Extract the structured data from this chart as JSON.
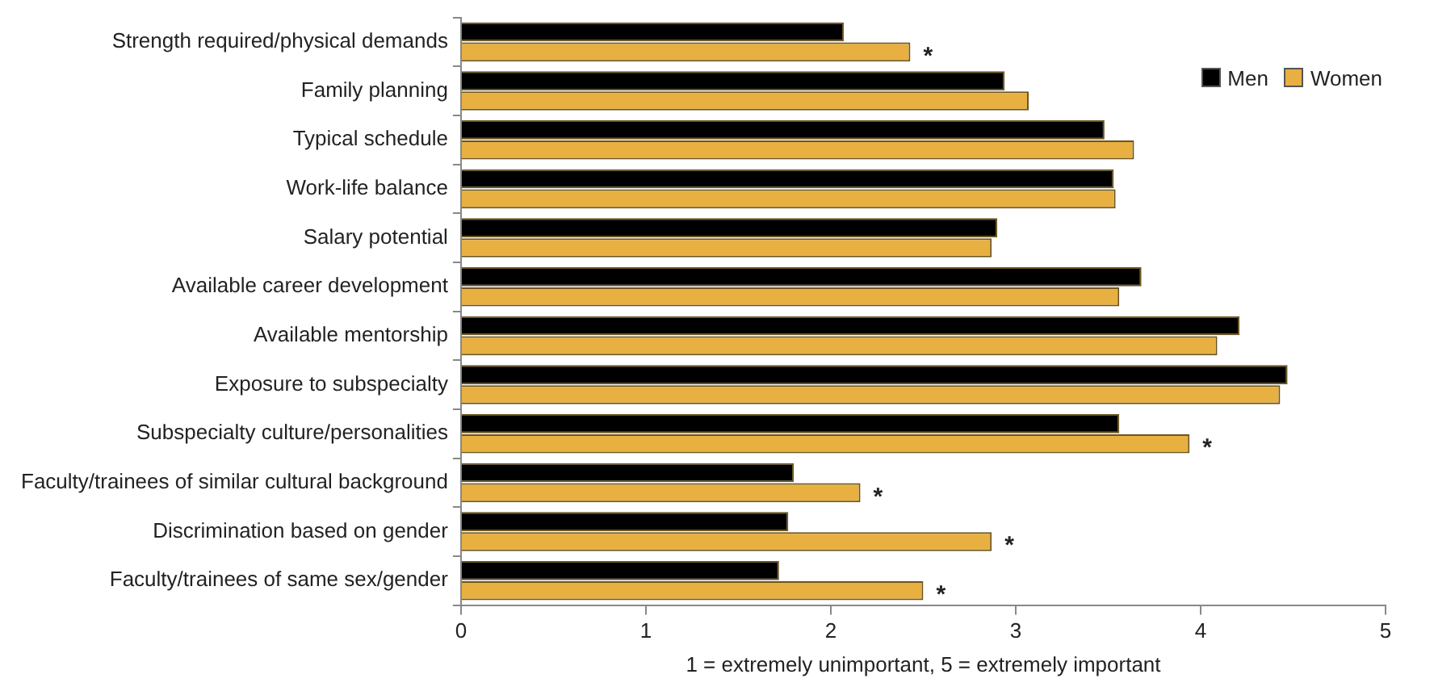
{
  "chart_data": {
    "type": "bar",
    "orientation": "horizontal",
    "xlabel": "1 = extremely unimportant, 5 = extremely important",
    "categories": [
      "Strength required/physical demands",
      "Family planning",
      "Typical schedule",
      "Work-life balance",
      "Salary potential",
      "Available career development",
      "Available mentorship",
      "Exposure to subspecialty",
      "Subspecialty culture/personalities",
      "Faculty/trainees of similar cultural background",
      "Discrimination based on gender",
      "Faculty/trainees of same sex/gender"
    ],
    "series": [
      {
        "name": "Men",
        "color": "#000000",
        "values": [
          2.07,
          2.94,
          3.48,
          3.53,
          2.9,
          3.68,
          4.21,
          4.47,
          3.56,
          1.8,
          1.77,
          1.72
        ]
      },
      {
        "name": "Women",
        "color": "#e8b040",
        "values": [
          2.43,
          3.07,
          3.64,
          3.54,
          2.87,
          3.56,
          4.09,
          4.43,
          3.94,
          2.16,
          2.87,
          2.5
        ]
      }
    ],
    "xlim": [
      0,
      5
    ],
    "xticks": [
      0,
      1,
      2,
      3,
      4,
      5
    ],
    "grid": false,
    "legend": "top right",
    "annotations": [
      {
        "text": "*",
        "x": 2.43,
        "y": "Strength required/physical demands"
      },
      {
        "text": "*",
        "x": 3.94,
        "y": "Subspecialty culture/personalities"
      },
      {
        "text": "*",
        "x": 2.16,
        "y": "Faculty/trainees of similar cultural background"
      },
      {
        "text": "*",
        "x": 2.87,
        "y": "Discrimination based on gender"
      },
      {
        "text": "*",
        "x": 2.5,
        "y": "Faculty/trainees of same sex/gender"
      }
    ]
  }
}
